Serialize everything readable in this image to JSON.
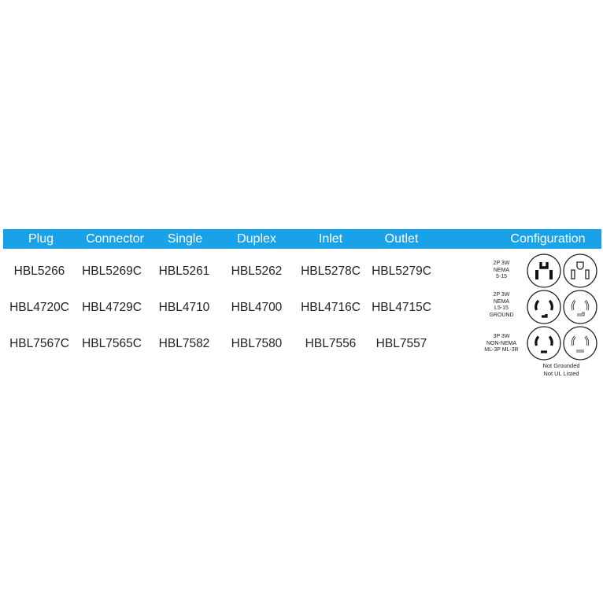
{
  "header": {
    "plug": "Plug",
    "connector": "Connector",
    "single": "Single",
    "duplex": "Duplex",
    "inlet": "Inlet",
    "outlet": "Outlet",
    "configuration": "Configuration"
  },
  "rows": [
    {
      "plug": "HBL5266",
      "connector": "HBL5269C",
      "single": "HBL5261",
      "duplex": "HBL5262",
      "inlet": "HBL5278C",
      "outlet": "HBL5279C",
      "config_label": [
        "2P 3W",
        "NEMA",
        "5-15"
      ],
      "icons": [
        "nema-5-15-plug-icon",
        "nema-5-15-receptacle-icon"
      ]
    },
    {
      "plug": "HBL4720C",
      "connector": "HBL4729C",
      "single": "HBL4710",
      "duplex": "HBL4700",
      "inlet": "HBL4716C",
      "outlet": "HBL4715C",
      "config_label": [
        "2P 3W",
        "NEMA",
        "L5-15",
        "GROUND"
      ],
      "icons": [
        "nema-l5-15-plug-icon",
        "nema-l5-15-receptacle-icon"
      ]
    },
    {
      "plug": "HBL7567C",
      "connector": "HBL7565C",
      "single": "HBL7582",
      "duplex": "HBL7580",
      "inlet": "HBL7556",
      "outlet": "HBL7557",
      "config_label": [
        "3P 3W",
        "NON-NEMA",
        "ML-3P ML-3R"
      ],
      "icons": [
        "ml-3p-plug-icon",
        "ml-3r-receptacle-icon"
      ]
    }
  ],
  "note": [
    "Not Grounded",
    "Not UL Listed"
  ],
  "colors": {
    "header_bg": "#1aa2e8",
    "header_text": "#ffffff",
    "body_text": "#222222"
  }
}
